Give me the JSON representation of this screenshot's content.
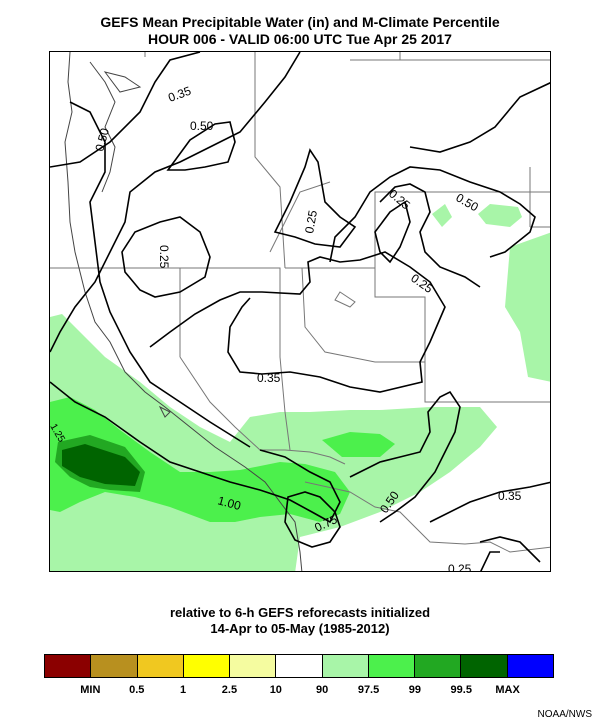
{
  "header": {
    "title_line1": "GEFS Mean Precipitable Water (in) and M-Climate Percentile",
    "title_line2": "HOUR 006 - VALID 06:00 UTC Tue Apr 25 2017"
  },
  "map": {
    "contour_labels": [
      "0.35",
      "0.50",
      "0.50",
      "0.25",
      "0.25",
      "0.25",
      "0.50",
      "0.25",
      "0.35",
      "1.00",
      "0.75",
      "0.50",
      "0.35",
      "0.25",
      "1.25"
    ]
  },
  "footer": {
    "line1": "relative to 6-h GEFS reforecasts initialized",
    "line2": "14-Apr to 05-May (1985-2012)",
    "credit": "NOAA/NWS"
  },
  "colorbar": {
    "colors": [
      "#8b0000",
      "#b8901f",
      "#f0c820",
      "#ffff00",
      "#f5fca0",
      "#ffffff",
      "#a8f5a8",
      "#4cf04c",
      "#22a822",
      "#006400",
      "#0000ff"
    ],
    "labels": [
      "MIN",
      "0.5",
      "1",
      "2.5",
      "10",
      "90",
      "97.5",
      "99",
      "99.5",
      "MAX"
    ]
  }
}
